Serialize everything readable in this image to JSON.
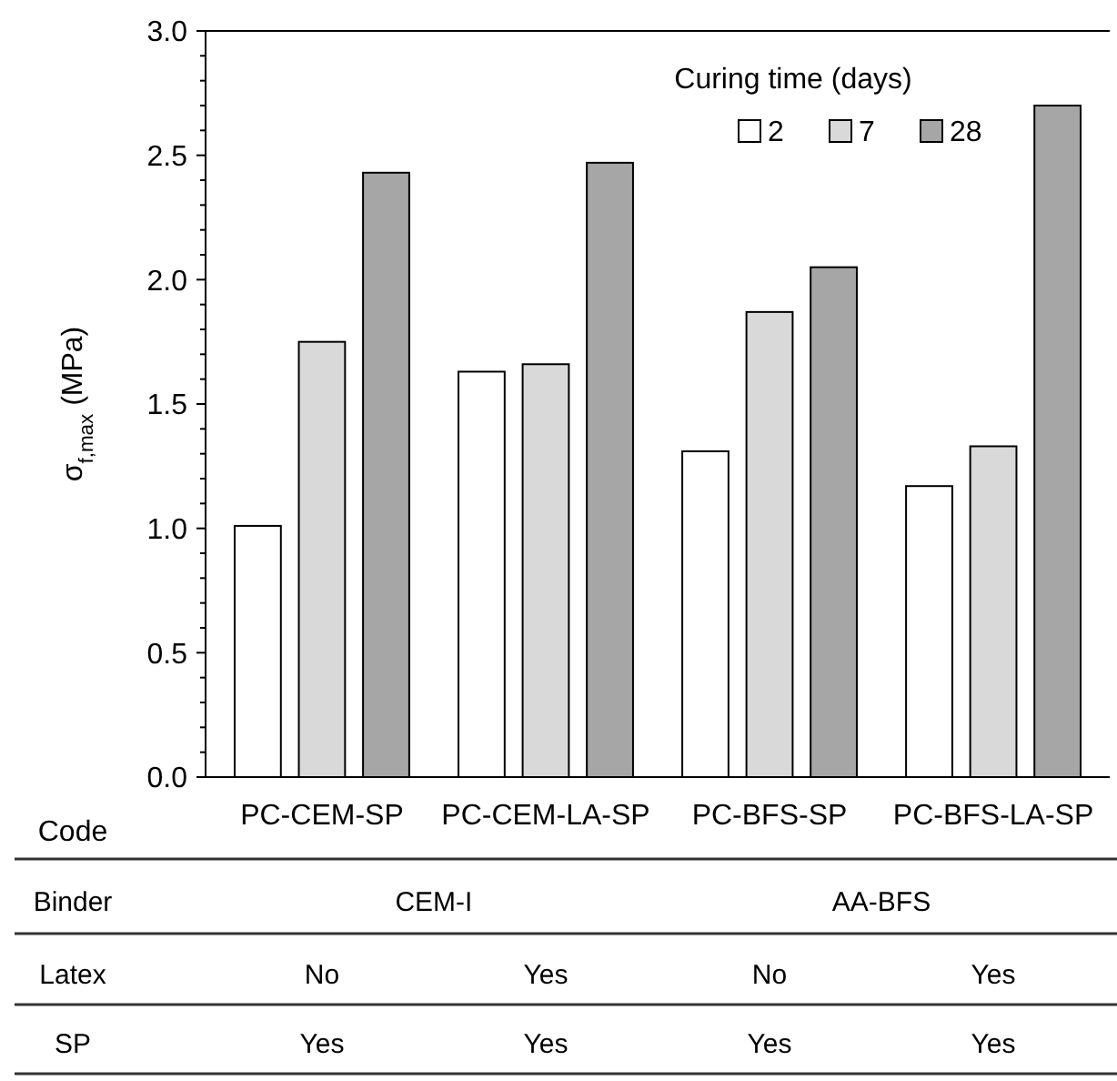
{
  "chart_data": {
    "type": "bar",
    "xlabel": "Code",
    "ylabel": "σ$_{f,max}$ (MPa)",
    "legend_title": "Curing time (days)",
    "legend": "top right",
    "categories": [
      "PC-CEM-SP",
      "PC-CEM-LA-SP",
      "PC-BFS-SP",
      "PC-BFS-LA-SP"
    ],
    "series": [
      {
        "name": "2",
        "color": "#ffffff",
        "values": [
          1.01,
          1.63,
          1.31,
          1.17
        ]
      },
      {
        "name": "7",
        "color": "#d9d9d9",
        "values": [
          1.75,
          1.66,
          1.87,
          1.33
        ]
      },
      {
        "name": "28",
        "color": "#a6a6a6",
        "values": [
          2.43,
          2.47,
          2.05,
          2.7
        ]
      }
    ],
    "ylim": [
      0,
      3
    ],
    "yticks": [
      {
        "value": 0,
        "label": "0.0"
      },
      {
        "value": 0.1,
        "label": null
      },
      {
        "value": 0.2,
        "label": null
      },
      {
        "value": 0.3,
        "label": null
      },
      {
        "value": 0.4,
        "label": null
      },
      {
        "value": 0.5,
        "label": "0.5"
      },
      {
        "value": 0.6,
        "label": null
      },
      {
        "value": 0.7,
        "label": null
      },
      {
        "value": 0.8,
        "label": null
      },
      {
        "value": 0.9,
        "label": null
      },
      {
        "value": 1,
        "label": "1.0"
      },
      {
        "value": 1.1,
        "label": null
      },
      {
        "value": 1.2,
        "label": null
      },
      {
        "value": 1.3,
        "label": null
      },
      {
        "value": 1.4,
        "label": null
      },
      {
        "value": 1.5,
        "label": "1.5"
      },
      {
        "value": 1.6,
        "label": null
      },
      {
        "value": 1.7,
        "label": null
      },
      {
        "value": 1.8,
        "label": null
      },
      {
        "value": 1.9,
        "label": null
      },
      {
        "value": 2,
        "label": "2.0"
      },
      {
        "value": 2.1,
        "label": null
      },
      {
        "value": 2.2,
        "label": null
      },
      {
        "value": 2.3,
        "label": null
      },
      {
        "value": 2.4,
        "label": null
      },
      {
        "value": 2.5,
        "label": "2.5"
      },
      {
        "value": 2.6,
        "label": null
      },
      {
        "value": 2.7,
        "label": null
      },
      {
        "value": 2.8,
        "label": null
      },
      {
        "value": 2.9,
        "label": null
      },
      {
        "value": 3,
        "label": "3.0"
      }
    ],
    "grid": false,
    "annotations": [
      "Binder",
      "CEM-I",
      "AA-BFS",
      "Latex",
      "No",
      "Yes",
      "No",
      "Yes",
      "SP",
      "Yes",
      "Yes",
      "Yes",
      "Yes"
    ]
  }
}
